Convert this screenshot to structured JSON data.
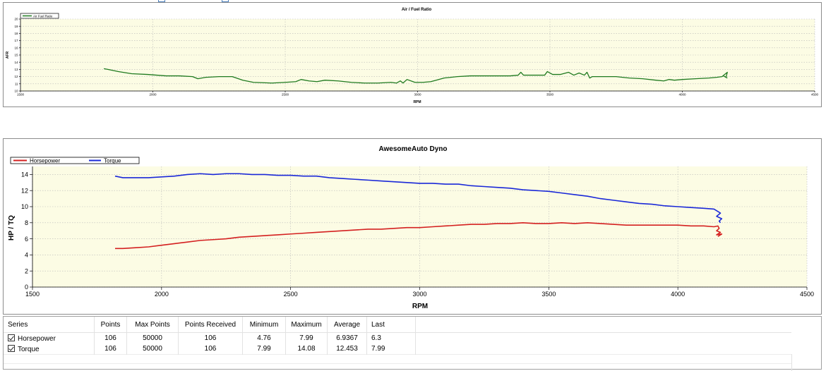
{
  "afr_chart": {
    "title": "Air / Fuel Ratio",
    "legend": "Air Fuel Ratio",
    "xlabel": "RPM",
    "ylabel": "AFR"
  },
  "dyno_chart": {
    "title": "AwesomeAuto Dyno",
    "legend_hp": "Horsepower",
    "legend_tq": "Torque",
    "xlabel": "RPM",
    "ylabel": "HP / TQ"
  },
  "colors": {
    "plot_bg": "#fcfce4",
    "afr_line": "#1f7a1f",
    "horsepower": "#d42020",
    "torque": "#1a28d8",
    "grid": "#b8b8b8"
  },
  "chart_data": [
    {
      "type": "line",
      "title": "Air / Fuel Ratio",
      "xlabel": "RPM",
      "ylabel": "AFR",
      "xlim": [
        1500,
        4500
      ],
      "ylim": [
        10,
        20
      ],
      "xticks": [
        1500,
        2000,
        2500,
        3000,
        3500,
        4000,
        4500
      ],
      "yticks": [
        10,
        11,
        12,
        13,
        14,
        15,
        16,
        17,
        18,
        19,
        20
      ],
      "grid": true,
      "legend_position": "top-left",
      "series": [
        {
          "name": "Air Fuel Ratio",
          "color": "#1f7a1f",
          "x": [
            1815,
            1830,
            1870,
            1920,
            1980,
            2050,
            2100,
            2150,
            2170,
            2185,
            2200,
            2250,
            2300,
            2340,
            2380,
            2450,
            2500,
            2540,
            2560,
            2590,
            2620,
            2650,
            2700,
            2750,
            2800,
            2850,
            2900,
            2920,
            2935,
            2945,
            2960,
            2990,
            3020,
            3050,
            3070,
            3100,
            3150,
            3200,
            3250,
            3300,
            3350,
            3380,
            3390,
            3400,
            3450,
            3480,
            3490,
            3510,
            3540,
            3570,
            3590,
            3610,
            3630,
            3640,
            3650,
            3660,
            3700,
            3750,
            3800,
            3850,
            3900,
            3930,
            3950,
            3970,
            4000,
            4050,
            4100,
            4130,
            4150,
            4160,
            4170,
            4165,
            4155,
            4170
          ],
          "y": [
            13.1,
            13.0,
            12.7,
            12.4,
            12.3,
            12.1,
            12.1,
            12.0,
            11.7,
            11.8,
            11.9,
            12.0,
            12.0,
            11.5,
            11.2,
            11.1,
            11.2,
            11.3,
            11.6,
            11.4,
            11.3,
            11.5,
            11.4,
            11.2,
            11.1,
            11.1,
            11.2,
            11.1,
            11.4,
            11.1,
            11.6,
            11.2,
            11.2,
            11.3,
            11.5,
            11.8,
            12.0,
            12.1,
            12.1,
            12.1,
            12.1,
            12.2,
            12.6,
            12.2,
            12.2,
            12.2,
            12.7,
            12.3,
            12.3,
            12.6,
            12.2,
            12.5,
            12.2,
            12.6,
            11.8,
            12.0,
            12.0,
            12.0,
            11.8,
            11.7,
            11.5,
            11.4,
            11.6,
            11.5,
            11.6,
            11.7,
            11.8,
            11.9,
            12.0,
            12.3,
            12.6,
            11.9,
            12.1,
            11.8
          ]
        }
      ]
    },
    {
      "type": "line",
      "title": "AwesomeAuto Dyno",
      "xlabel": "RPM",
      "ylabel": "HP / TQ",
      "xlim": [
        1500,
        4500
      ],
      "ylim": [
        0,
        15
      ],
      "xticks": [
        1500,
        2000,
        2500,
        3000,
        3500,
        4000,
        4500
      ],
      "yticks": [
        0,
        2,
        4,
        6,
        8,
        10,
        12,
        14
      ],
      "grid": true,
      "legend_position": "top-left",
      "series": [
        {
          "name": "Horsepower",
          "color": "#d42020",
          "x": [
            1820,
            1850,
            1900,
            1950,
            2000,
            2050,
            2100,
            2150,
            2200,
            2250,
            2300,
            2350,
            2400,
            2450,
            2500,
            2550,
            2600,
            2650,
            2700,
            2750,
            2800,
            2850,
            2900,
            2950,
            3000,
            3050,
            3100,
            3150,
            3200,
            3250,
            3300,
            3350,
            3400,
            3450,
            3500,
            3550,
            3600,
            3650,
            3700,
            3750,
            3800,
            3850,
            3900,
            3950,
            4000,
            4050,
            4100,
            4140,
            4155,
            4160,
            4150,
            4165,
            4150,
            4170,
            4155
          ],
          "y": [
            4.8,
            4.8,
            4.9,
            5.0,
            5.2,
            5.4,
            5.6,
            5.8,
            5.9,
            6.0,
            6.2,
            6.3,
            6.4,
            6.5,
            6.6,
            6.7,
            6.8,
            6.9,
            7.0,
            7.1,
            7.2,
            7.2,
            7.3,
            7.4,
            7.4,
            7.5,
            7.6,
            7.7,
            7.8,
            7.8,
            7.9,
            7.9,
            8.0,
            7.9,
            7.9,
            8.0,
            7.9,
            8.0,
            7.9,
            7.8,
            7.7,
            7.7,
            7.7,
            7.7,
            7.7,
            7.6,
            7.6,
            7.5,
            7.6,
            7.3,
            7.0,
            6.8,
            6.5,
            6.6,
            6.3
          ]
        },
        {
          "name": "Torque",
          "color": "#1a28d8",
          "x": [
            1820,
            1850,
            1900,
            1950,
            2000,
            2050,
            2100,
            2150,
            2200,
            2250,
            2300,
            2350,
            2400,
            2450,
            2500,
            2550,
            2600,
            2650,
            2700,
            2750,
            2800,
            2850,
            2900,
            2950,
            3000,
            3050,
            3100,
            3150,
            3200,
            3250,
            3300,
            3350,
            3400,
            3450,
            3500,
            3550,
            3600,
            3650,
            3700,
            3750,
            3800,
            3850,
            3900,
            3950,
            4000,
            4050,
            4100,
            4140,
            4155,
            4165,
            4150,
            4170,
            4160,
            4165
          ],
          "y": [
            13.8,
            13.6,
            13.6,
            13.6,
            13.7,
            13.8,
            14.0,
            14.1,
            14.0,
            14.1,
            14.1,
            14.0,
            14.0,
            13.9,
            13.9,
            13.8,
            13.8,
            13.6,
            13.5,
            13.4,
            13.3,
            13.2,
            13.1,
            13.0,
            12.9,
            12.9,
            12.8,
            12.8,
            12.6,
            12.5,
            12.4,
            12.3,
            12.1,
            12.0,
            11.9,
            11.7,
            11.5,
            11.3,
            11.0,
            10.8,
            10.6,
            10.4,
            10.3,
            10.1,
            10.0,
            9.9,
            9.8,
            9.7,
            9.4,
            9.2,
            8.8,
            8.5,
            8.2,
            8.0
          ]
        }
      ]
    }
  ],
  "table": {
    "headers": [
      "Series",
      "Points",
      "Max Points",
      "Points Received",
      "Minimum",
      "Maximum",
      "Average",
      "Last"
    ],
    "rows": [
      {
        "series": "Horsepower",
        "points": "106",
        "max_points": "50000",
        "points_received": "106",
        "minimum": "4.76",
        "maximum": "7.99",
        "average": "6.9367",
        "last": "6.3",
        "checked": true
      },
      {
        "series": "Torque",
        "points": "106",
        "max_points": "50000",
        "points_received": "106",
        "minimum": "7.99",
        "maximum": "14.08",
        "average": "12.453",
        "last": "7.99",
        "checked": true
      }
    ]
  }
}
